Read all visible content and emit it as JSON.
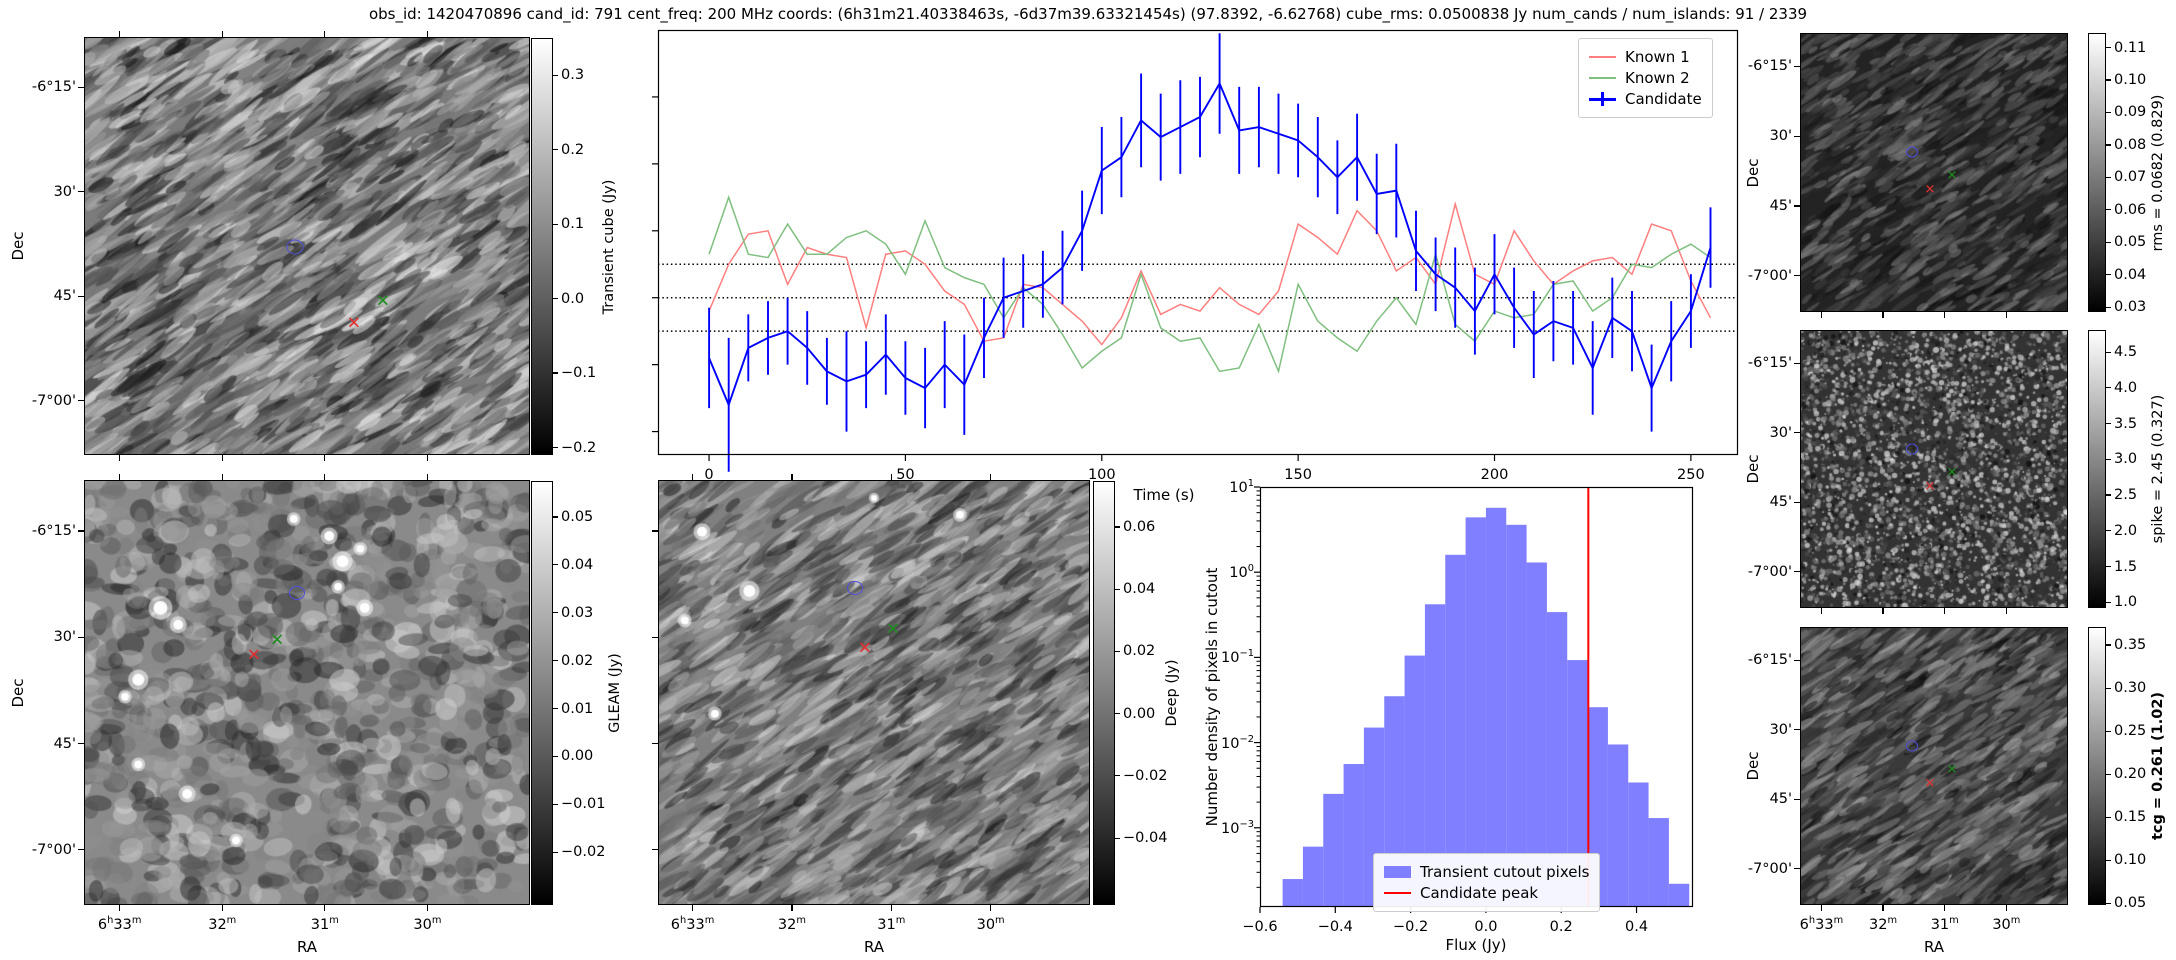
{
  "title": "obs_id: 1420470896 cand_id: 791 cent_freq: 200 MHz coords: (6h31m21.40338463s, -6d37m39.63321454s) (97.8392, -6.62768) cube_rms: 0.0500838 Jy num_cands / num_islands: 91 / 2339",
  "axis_labels": {
    "dec": "Dec",
    "ra": "RA",
    "time": "Time (s)",
    "flux": "Flux (Jy)",
    "hist_y": "Number density of pixels in cutout"
  },
  "dec_ticks": {
    "fracs": [
      0.12,
      0.37,
      0.62,
      0.87
    ],
    "labels": [
      "-6°15'",
      "30'",
      "45'",
      "-7°00'"
    ]
  },
  "ra_ticks": {
    "fracs": [
      0.08,
      0.31,
      0.54,
      0.77
    ],
    "labels": [
      "6h33m",
      "32m",
      "31m",
      "30m"
    ]
  },
  "colors": {
    "known1": "#ff7f7f",
    "known2": "#7fbf7f",
    "candidate": "#0000ff",
    "hist_fill": "#7f7fff",
    "peak_line": "#ff0000",
    "marker_circle": "#5050dd",
    "marker_green": "#1e8c1e",
    "marker_red": "#e03030",
    "dotted_line": "#000000"
  },
  "panels": {
    "transient": {
      "colorbar": {
        "label": "Transient cube (Jy)",
        "vmin": -0.21,
        "vmax": 0.35,
        "ticks": [
          0.3,
          0.2,
          0.1,
          0.0,
          -0.1,
          -0.2
        ],
        "decimals": 1
      },
      "markers": [
        {
          "type": "circle",
          "x": 0.473,
          "y": 0.502
        },
        {
          "type": "x",
          "color": "green",
          "x": 0.67,
          "y": 0.634
        },
        {
          "type": "x",
          "color": "red",
          "x": 0.605,
          "y": 0.687
        }
      ]
    },
    "gleam": {
      "colorbar": {
        "label": "GLEAM (Jy)",
        "vmin": -0.031,
        "vmax": 0.0575,
        "ticks": [
          0.05,
          0.04,
          0.03,
          0.02,
          0.01,
          0.0,
          -0.01,
          -0.02
        ],
        "decimals": 2
      },
      "markers": [
        {
          "type": "circle",
          "x": 0.478,
          "y": 0.266
        },
        {
          "type": "x",
          "color": "green",
          "x": 0.433,
          "y": 0.379
        },
        {
          "type": "x",
          "color": "red",
          "x": 0.381,
          "y": 0.414
        }
      ]
    },
    "deep": {
      "colorbar": {
        "label": "Deep (Jy)",
        "vmin": -0.0615,
        "vmax": 0.0748,
        "ticks": [
          0.06,
          0.04,
          0.02,
          0.0,
          -0.02,
          -0.04
        ],
        "decimals": 2
      },
      "markers": [
        {
          "type": "circle",
          "x": 0.456,
          "y": 0.254
        },
        {
          "type": "x",
          "color": "green",
          "x": 0.544,
          "y": 0.353
        },
        {
          "type": "x",
          "color": "red",
          "x": 0.479,
          "y": 0.398
        }
      ]
    },
    "rms": {
      "colorbar": {
        "label": "rms = 0.0682 (0.829)",
        "vmin": 0.0285,
        "vmax": 0.1145,
        "ticks": [
          0.11,
          0.1,
          0.09,
          0.08,
          0.07,
          0.06,
          0.05,
          0.04,
          0.03
        ],
        "decimals": 2
      },
      "markers": [
        {
          "type": "circle",
          "x": 0.418,
          "y": 0.427
        },
        {
          "type": "x",
          "color": "green",
          "x": 0.567,
          "y": 0.513
        },
        {
          "type": "x",
          "color": "red",
          "x": 0.485,
          "y": 0.563
        }
      ]
    },
    "spike": {
      "colorbar": {
        "label": "spike = 2.45 (0.327)",
        "vmin": 0.92,
        "vmax": 4.81,
        "ticks": [
          4.5,
          4.0,
          3.5,
          3.0,
          2.5,
          2.0,
          1.5,
          1.0
        ],
        "decimals": 1
      },
      "markers": [
        {
          "type": "circle",
          "x": 0.418,
          "y": 0.427
        },
        {
          "type": "x",
          "color": "green",
          "x": 0.567,
          "y": 0.513
        },
        {
          "type": "x",
          "color": "red",
          "x": 0.485,
          "y": 0.563
        }
      ]
    },
    "tcg": {
      "colorbar": {
        "label": "tcg = 0.261 (1.02)",
        "bold": true,
        "vmin": 0.048,
        "vmax": 0.371,
        "ticks": [
          0.35,
          0.3,
          0.25,
          0.2,
          0.15,
          0.1,
          0.05
        ],
        "decimals": 2
      },
      "markers": [
        {
          "type": "circle",
          "x": 0.418,
          "y": 0.427
        },
        {
          "type": "x",
          "color": "green",
          "x": 0.567,
          "y": 0.513
        },
        {
          "type": "x",
          "color": "red",
          "x": 0.485,
          "y": 0.563
        }
      ]
    }
  },
  "chart_data": [
    {
      "type": "line",
      "title": "",
      "xlabel": "Time (s)",
      "ylabel": "",
      "xlim": [
        -13,
        262
      ],
      "ylim": [
        -0.235,
        0.4
      ],
      "xticks": [
        0,
        50,
        100,
        150,
        200,
        250
      ],
      "yticks_unlabeled": [
        0.3,
        0.2,
        0.1,
        0.0,
        -0.1,
        -0.2
      ],
      "dotted_hlines": [
        0.05,
        0.0,
        -0.05
      ],
      "legend_position": "upper right",
      "x": [
        0,
        5,
        10,
        15,
        20,
        25,
        30,
        35,
        40,
        45,
        50,
        55,
        60,
        65,
        70,
        75,
        80,
        85,
        90,
        95,
        100,
        105,
        110,
        115,
        120,
        125,
        130,
        135,
        140,
        145,
        150,
        155,
        160,
        165,
        170,
        175,
        180,
        185,
        190,
        195,
        200,
        205,
        210,
        215,
        220,
        225,
        230,
        235,
        240,
        245,
        250,
        255
      ],
      "series": [
        {
          "name": "Known 1",
          "color_key": "known1",
          "values": [
            -0.02,
            0.05,
            0.095,
            0.1,
            0.02,
            0.075,
            0.065,
            0.06,
            -0.045,
            0.065,
            0.07,
            0.05,
            0.01,
            -0.01,
            -0.065,
            -0.06,
            0.02,
            0.015,
            -0.01,
            -0.035,
            -0.07,
            -0.03,
            0.04,
            -0.025,
            -0.01,
            -0.02,
            0.015,
            -0.01,
            -0.025,
            0.01,
            0.11,
            0.09,
            0.065,
            0.13,
            0.1,
            0.04,
            0.06,
            0.02,
            0.14,
            0.035,
            0.02,
            0.1,
            0.055,
            0.02,
            0.04,
            0.055,
            0.06,
            0.035,
            0.11,
            0.1,
            0.025,
            -0.03
          ]
        },
        {
          "name": "Known 2",
          "color_key": "known2",
          "values": [
            0.065,
            0.15,
            0.065,
            0.06,
            0.11,
            0.065,
            0.065,
            0.09,
            0.1,
            0.08,
            0.035,
            0.115,
            0.045,
            0.03,
            0.02,
            -0.03,
            0.015,
            -0.01,
            -0.055,
            -0.105,
            -0.08,
            -0.06,
            0.035,
            -0.045,
            -0.065,
            -0.06,
            -0.11,
            -0.105,
            -0.04,
            -0.11,
            0.02,
            -0.035,
            -0.06,
            -0.08,
            -0.035,
            0.0,
            -0.04,
            0.065,
            -0.04,
            -0.065,
            -0.02,
            -0.03,
            -0.025,
            0.02,
            0.025,
            -0.02,
            0.0,
            0.05,
            0.045,
            0.065,
            0.08,
            0.06
          ]
        },
        {
          "name": "Candidate",
          "color_key": "candidate",
          "values": [
            -0.09,
            -0.16,
            -0.075,
            -0.06,
            -0.05,
            -0.075,
            -0.11,
            -0.125,
            -0.115,
            -0.085,
            -0.12,
            -0.135,
            -0.1,
            -0.13,
            -0.06,
            0.0,
            0.01,
            0.02,
            0.045,
            0.1,
            0.19,
            0.21,
            0.265,
            0.24,
            0.255,
            0.27,
            0.32,
            0.25,
            0.255,
            0.245,
            0.235,
            0.21,
            0.18,
            0.21,
            0.155,
            0.16,
            0.07,
            0.035,
            0.015,
            -0.02,
            0.035,
            -0.015,
            -0.055,
            -0.035,
            -0.045,
            -0.105,
            -0.03,
            -0.05,
            -0.135,
            -0.065,
            -0.02,
            0.075
          ],
          "errors": [
            0.075,
            0.1,
            0.05,
            0.055,
            0.05,
            0.055,
            0.05,
            0.075,
            0.05,
            0.06,
            0.055,
            0.06,
            0.065,
            0.075,
            0.06,
            0.06,
            0.055,
            0.05,
            0.055,
            0.06,
            0.065,
            0.06,
            0.07,
            0.065,
            0.07,
            0.06,
            0.075,
            0.065,
            0.06,
            0.06,
            0.055,
            0.06,
            0.055,
            0.065,
            0.06,
            0.07,
            0.06,
            0.055,
            0.06,
            0.065,
            0.06,
            0.06,
            0.065,
            0.06,
            0.055,
            0.07,
            0.06,
            0.06,
            0.065,
            0.06,
            0.055,
            0.06
          ]
        }
      ]
    },
    {
      "type": "bar",
      "xlabel": "Flux (Jy)",
      "ylabel": "Number density of pixels in cutout",
      "xlim": [
        -0.6,
        0.55
      ],
      "ylog": true,
      "ylim_log_exponents": [
        -3.93,
        1.0
      ],
      "xticks": [
        -0.6,
        -0.4,
        -0.2,
        0.0,
        0.2,
        0.4
      ],
      "ytick_exponents": [
        1,
        0,
        -1,
        -2,
        -3
      ],
      "bin_start": -0.54,
      "bin_width": 0.054,
      "densities": [
        0.00025,
        0.0006,
        0.0025,
        0.0056,
        0.015,
        0.035,
        0.105,
        0.42,
        1.6,
        4.4,
        5.7,
        3.6,
        1.3,
        0.34,
        0.093,
        0.026,
        0.0095,
        0.0034,
        0.0013,
        0.00022
      ],
      "candidate_peak": 0.272,
      "legend": [
        "Transient cutout pixels",
        "Candidate peak"
      ]
    }
  ]
}
